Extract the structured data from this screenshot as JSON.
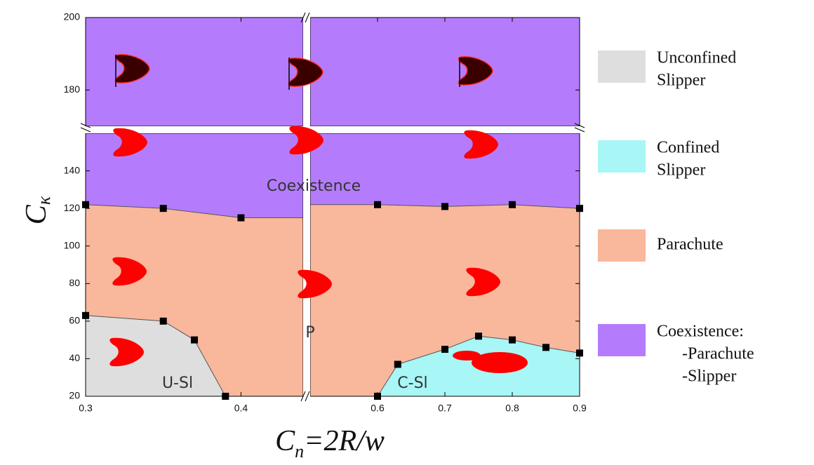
{
  "chart_data": {
    "type": "phase-diagram",
    "ylabel": "C",
    "ylabel_sub": "κ",
    "xlabel": "C",
    "xlabel_sub": "n",
    "xlabel_rest": "=2R/w",
    "x_segments": [
      {
        "xlim": [
          0.3,
          0.44
        ],
        "xticks": [
          0.3,
          0.4
        ]
      },
      {
        "xlim": [
          0.5,
          0.9
        ],
        "xticks": [
          0.6,
          0.7,
          0.8,
          0.9
        ]
      }
    ],
    "y_segments": [
      {
        "ylim": [
          20,
          160
        ],
        "yticks": [
          20,
          40,
          60,
          80,
          100,
          120,
          140
        ]
      },
      {
        "ylim": [
          170,
          200
        ],
        "yticks": [
          180,
          200
        ]
      }
    ],
    "background_color": "#b47cfc",
    "boundaries": [
      {
        "color": "#f9b79c",
        "x": [
          0.3,
          0.35,
          0.4,
          0.6,
          0.7,
          0.8,
          0.9
        ],
        "y": [
          122,
          120,
          115,
          122,
          121,
          122,
          120
        ]
      },
      {
        "color": "#dedede",
        "x": [
          0.3,
          0.35,
          0.37,
          0.39
        ],
        "y": [
          63,
          60,
          50,
          20
        ]
      },
      {
        "color": "#a8f6f6",
        "x": [
          0.6,
          0.63,
          0.7,
          0.75,
          0.8,
          0.85,
          0.9
        ],
        "y": [
          20,
          37,
          45,
          52,
          50,
          46,
          43
        ]
      }
    ],
    "legend": [
      {
        "color": "#dedede",
        "lines": [
          "Unconfined",
          "Slipper"
        ]
      },
      {
        "color": "#a8f6f6",
        "lines": [
          "Confined",
          "Slipper"
        ]
      },
      {
        "color": "#f9b79c",
        "lines": [
          "Parachute"
        ]
      },
      {
        "color": "#b47cfc",
        "lines": [
          "Coexistence:",
          "-Parachute",
          "-Slipper"
        ]
      }
    ],
    "annotations": [
      "Coexistence",
      "P",
      "U-Sl",
      "C-Sl"
    ]
  }
}
